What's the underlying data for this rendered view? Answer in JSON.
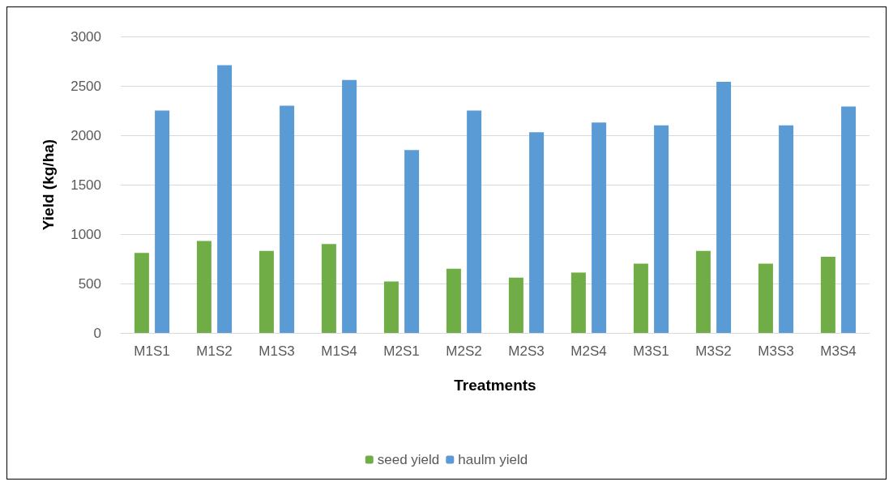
{
  "chart_data": {
    "type": "bar",
    "xlabel": "Treatments",
    "ylabel": "Yield (kg/ha)",
    "categories": [
      "M1S1",
      "M1S2",
      "M1S3",
      "M1S4",
      "M2S1",
      "M2S2",
      "M2S3",
      "M2S4",
      "M3S1",
      "M3S2",
      "M3S3",
      "M3S4"
    ],
    "series": [
      {
        "name": "seed yield",
        "color": "#70ad47",
        "values": [
          810,
          930,
          830,
          900,
          520,
          650,
          560,
          610,
          700,
          830,
          700,
          770
        ]
      },
      {
        "name": "haulm yield",
        "color": "#5b9bd5",
        "values": [
          2250,
          2710,
          2300,
          2560,
          1850,
          2250,
          2030,
          2130,
          2100,
          2540,
          2100,
          2290
        ]
      }
    ],
    "ylim": [
      0,
      3000
    ],
    "yticks": [
      0,
      500,
      1000,
      1500,
      2000,
      2500,
      3000
    ],
    "grid": "y",
    "legend": "bottom"
  }
}
